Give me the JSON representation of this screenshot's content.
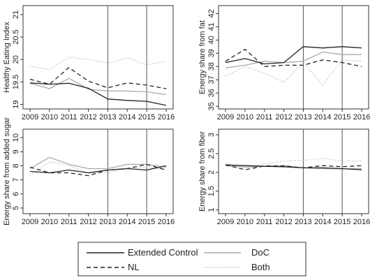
{
  "chart_data": [
    {
      "type": "line",
      "ylabel": "Healthy Eating Index",
      "x": [
        2009,
        2010,
        2011,
        2012,
        2013,
        2014,
        2015,
        2016
      ],
      "xticks": [
        "2009",
        "2010",
        "2011",
        "2012",
        "2013",
        "2014",
        "2015",
        "2016"
      ],
      "ylim": [
        18.9,
        21.2
      ],
      "yticks": [
        "19",
        "19.5",
        "20",
        "20.5",
        "21"
      ],
      "ytick_values": [
        19,
        19.5,
        20,
        20.5,
        21
      ],
      "vlines": [
        2013,
        2015
      ],
      "series": [
        {
          "name": "Extended Control",
          "values": [
            19.48,
            19.45,
            19.47,
            19.36,
            19.12,
            19.09,
            19.07,
            18.98
          ]
        },
        {
          "name": "NL",
          "values": [
            19.56,
            19.45,
            19.82,
            19.52,
            19.37,
            19.48,
            19.43,
            19.35
          ]
        },
        {
          "name": "DoC",
          "values": [
            19.47,
            19.35,
            19.58,
            19.34,
            19.3,
            19.3,
            19.28,
            19.22
          ]
        },
        {
          "name": "Both",
          "values": [
            19.85,
            19.78,
            20.05,
            20.0,
            19.92,
            20.04,
            19.88,
            19.96
          ]
        }
      ]
    },
    {
      "type": "line",
      "ylabel": "Energy share from fat",
      "x": [
        2009,
        2010,
        2011,
        2012,
        2013,
        2014,
        2015,
        2016
      ],
      "xticks": [
        "2009",
        "2010",
        "2011",
        "2012",
        "2013",
        "2014",
        "2015",
        "2016"
      ],
      "ylim": [
        34.8,
        42.6
      ],
      "yticks": [
        "35",
        "36",
        "37",
        "38",
        "39",
        "40",
        "41",
        "42"
      ],
      "ytick_values": [
        35,
        36,
        37,
        38,
        39,
        40,
        41,
        42
      ],
      "vlines": [
        2013,
        2015
      ],
      "series": [
        {
          "name": "Extended Control",
          "values": [
            38.3,
            38.6,
            38.2,
            38.3,
            39.5,
            39.4,
            39.5,
            39.4
          ]
        },
        {
          "name": "NL",
          "values": [
            38.4,
            39.3,
            38.0,
            38.1,
            38.1,
            38.5,
            38.3,
            38.0
          ]
        },
        {
          "name": "DoC",
          "values": [
            37.9,
            38.1,
            38.4,
            38.3,
            38.4,
            39.1,
            38.9,
            38.9
          ]
        },
        {
          "name": "Both",
          "values": [
            37.3,
            38.0,
            37.5,
            36.8,
            38.3,
            36.6,
            38.5,
            38.4
          ]
        }
      ]
    },
    {
      "type": "line",
      "ylabel": "Energy share from added sugar",
      "x": [
        2009,
        2010,
        2011,
        2012,
        2013,
        2014,
        2015,
        2016
      ],
      "xticks": [
        "2009",
        "2010",
        "2011",
        "2012",
        "2013",
        "2014",
        "2015",
        "2016"
      ],
      "ylim": [
        4.6,
        10.6
      ],
      "yticks": [
        "5",
        "6",
        "7",
        "8",
        "9",
        "10"
      ],
      "ytick_values": [
        5,
        6,
        7,
        8,
        9,
        10
      ],
      "vlines": [
        2013,
        2015
      ],
      "series": [
        {
          "name": "Extended Control",
          "values": [
            7.6,
            7.5,
            7.7,
            7.5,
            7.7,
            7.8,
            7.7,
            8.0
          ]
        },
        {
          "name": "NL",
          "values": [
            7.9,
            7.5,
            7.5,
            7.3,
            7.7,
            7.8,
            8.1,
            7.7
          ]
        },
        {
          "name": "DoC",
          "values": [
            7.8,
            8.6,
            8.1,
            7.8,
            7.8,
            8.1,
            8.1,
            7.9
          ]
        },
        {
          "name": "Both",
          "values": [
            7.3,
            8.3,
            8.0,
            7.5,
            7.5,
            7.8,
            7.9,
            7.7
          ]
        }
      ]
    },
    {
      "type": "line",
      "ylabel": "Energy share from fiber",
      "x": [
        2009,
        2010,
        2011,
        2012,
        2013,
        2014,
        2015,
        2016
      ],
      "xticks": [
        "2009",
        "2010",
        "2011",
        "2012",
        "2013",
        "2014",
        "2015",
        "2016"
      ],
      "ylim": [
        0.9,
        3.15
      ],
      "yticks": [
        "1",
        "1.5",
        "2",
        "2.5",
        "3"
      ],
      "ytick_values": [
        1,
        1.5,
        2,
        2.5,
        3
      ],
      "vlines": [
        2013,
        2015
      ],
      "series": [
        {
          "name": "Extended Control",
          "values": [
            2.2,
            2.18,
            2.16,
            2.15,
            2.12,
            2.12,
            2.1,
            2.07
          ]
        },
        {
          "name": "NL",
          "values": [
            2.2,
            2.07,
            2.17,
            2.17,
            2.12,
            2.18,
            2.15,
            2.18
          ]
        },
        {
          "name": "DoC",
          "values": [
            2.18,
            2.14,
            2.16,
            2.18,
            2.12,
            2.1,
            2.09,
            2.1
          ]
        },
        {
          "name": "Both",
          "values": [
            2.22,
            2.14,
            2.22,
            2.3,
            2.32,
            2.37,
            2.3,
            2.3
          ]
        }
      ]
    }
  ],
  "legend": {
    "placement": "bottom",
    "items": [
      {
        "label": "Extended Control",
        "series": "Extended Control"
      },
      {
        "label": "DoC",
        "series": "DoC"
      },
      {
        "label": "NL",
        "series": "NL"
      },
      {
        "label": "Both",
        "series": "Both"
      }
    ]
  },
  "styles": {
    "Extended Control": {
      "color": "#222222",
      "dash": "solid"
    },
    "NL": {
      "color": "#222222",
      "dash": "dashed"
    },
    "DoC": {
      "color": "#aaaaaa",
      "dash": "solid"
    },
    "Both": {
      "color": "#b0b0b0",
      "dash": "dotted"
    }
  }
}
